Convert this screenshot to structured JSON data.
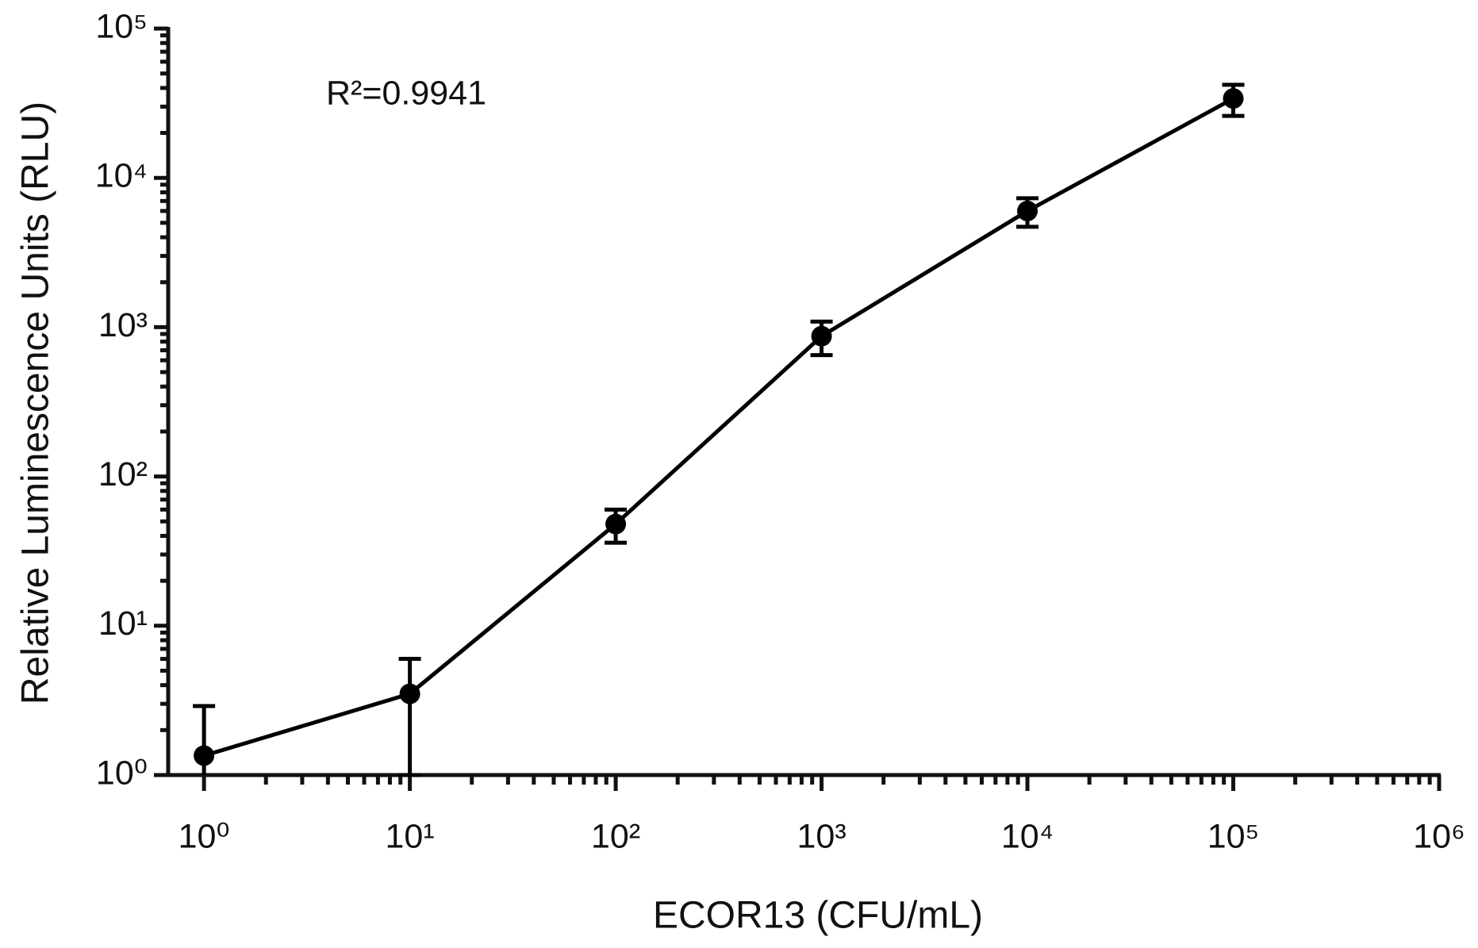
{
  "chart_data": {
    "type": "line",
    "annotation": "R²=0.9941",
    "x_label": "ECOR13 (CFU/mL)",
    "y_label": "Relative Luminescence Units (RLU)",
    "x": [
      1,
      10,
      100,
      1000,
      10000,
      100000
    ],
    "series": [
      {
        "color": "#000000",
        "values": [
          1.35,
          3.5,
          48,
          870,
          6000,
          34000
        ],
        "errors": [
          1.55,
          2.5,
          12,
          220,
          1300,
          8000
        ]
      }
    ],
    "x_log": true,
    "y_log": true,
    "minor_ticks": true,
    "xlim": [
      0.67,
      1000000
    ],
    "ylim": [
      1,
      100000
    ],
    "xticks": [
      {
        "value": 1,
        "label": "10⁰"
      },
      {
        "value": 10,
        "label": "10¹"
      },
      {
        "value": 100,
        "label": "10²"
      },
      {
        "value": 1000,
        "label": "10³"
      },
      {
        "value": 10000,
        "label": "10⁴"
      },
      {
        "value": 100000,
        "label": "10⁵"
      },
      {
        "value": 1000000,
        "label": "10⁶"
      }
    ],
    "yticks": [
      {
        "value": 1,
        "label": "10⁰"
      },
      {
        "value": 10,
        "label": "10¹"
      },
      {
        "value": 100,
        "label": "10²"
      },
      {
        "value": 1000,
        "label": "10³"
      },
      {
        "value": 10000,
        "label": "10⁴"
      },
      {
        "value": 100000,
        "label": "10⁵"
      }
    ]
  }
}
